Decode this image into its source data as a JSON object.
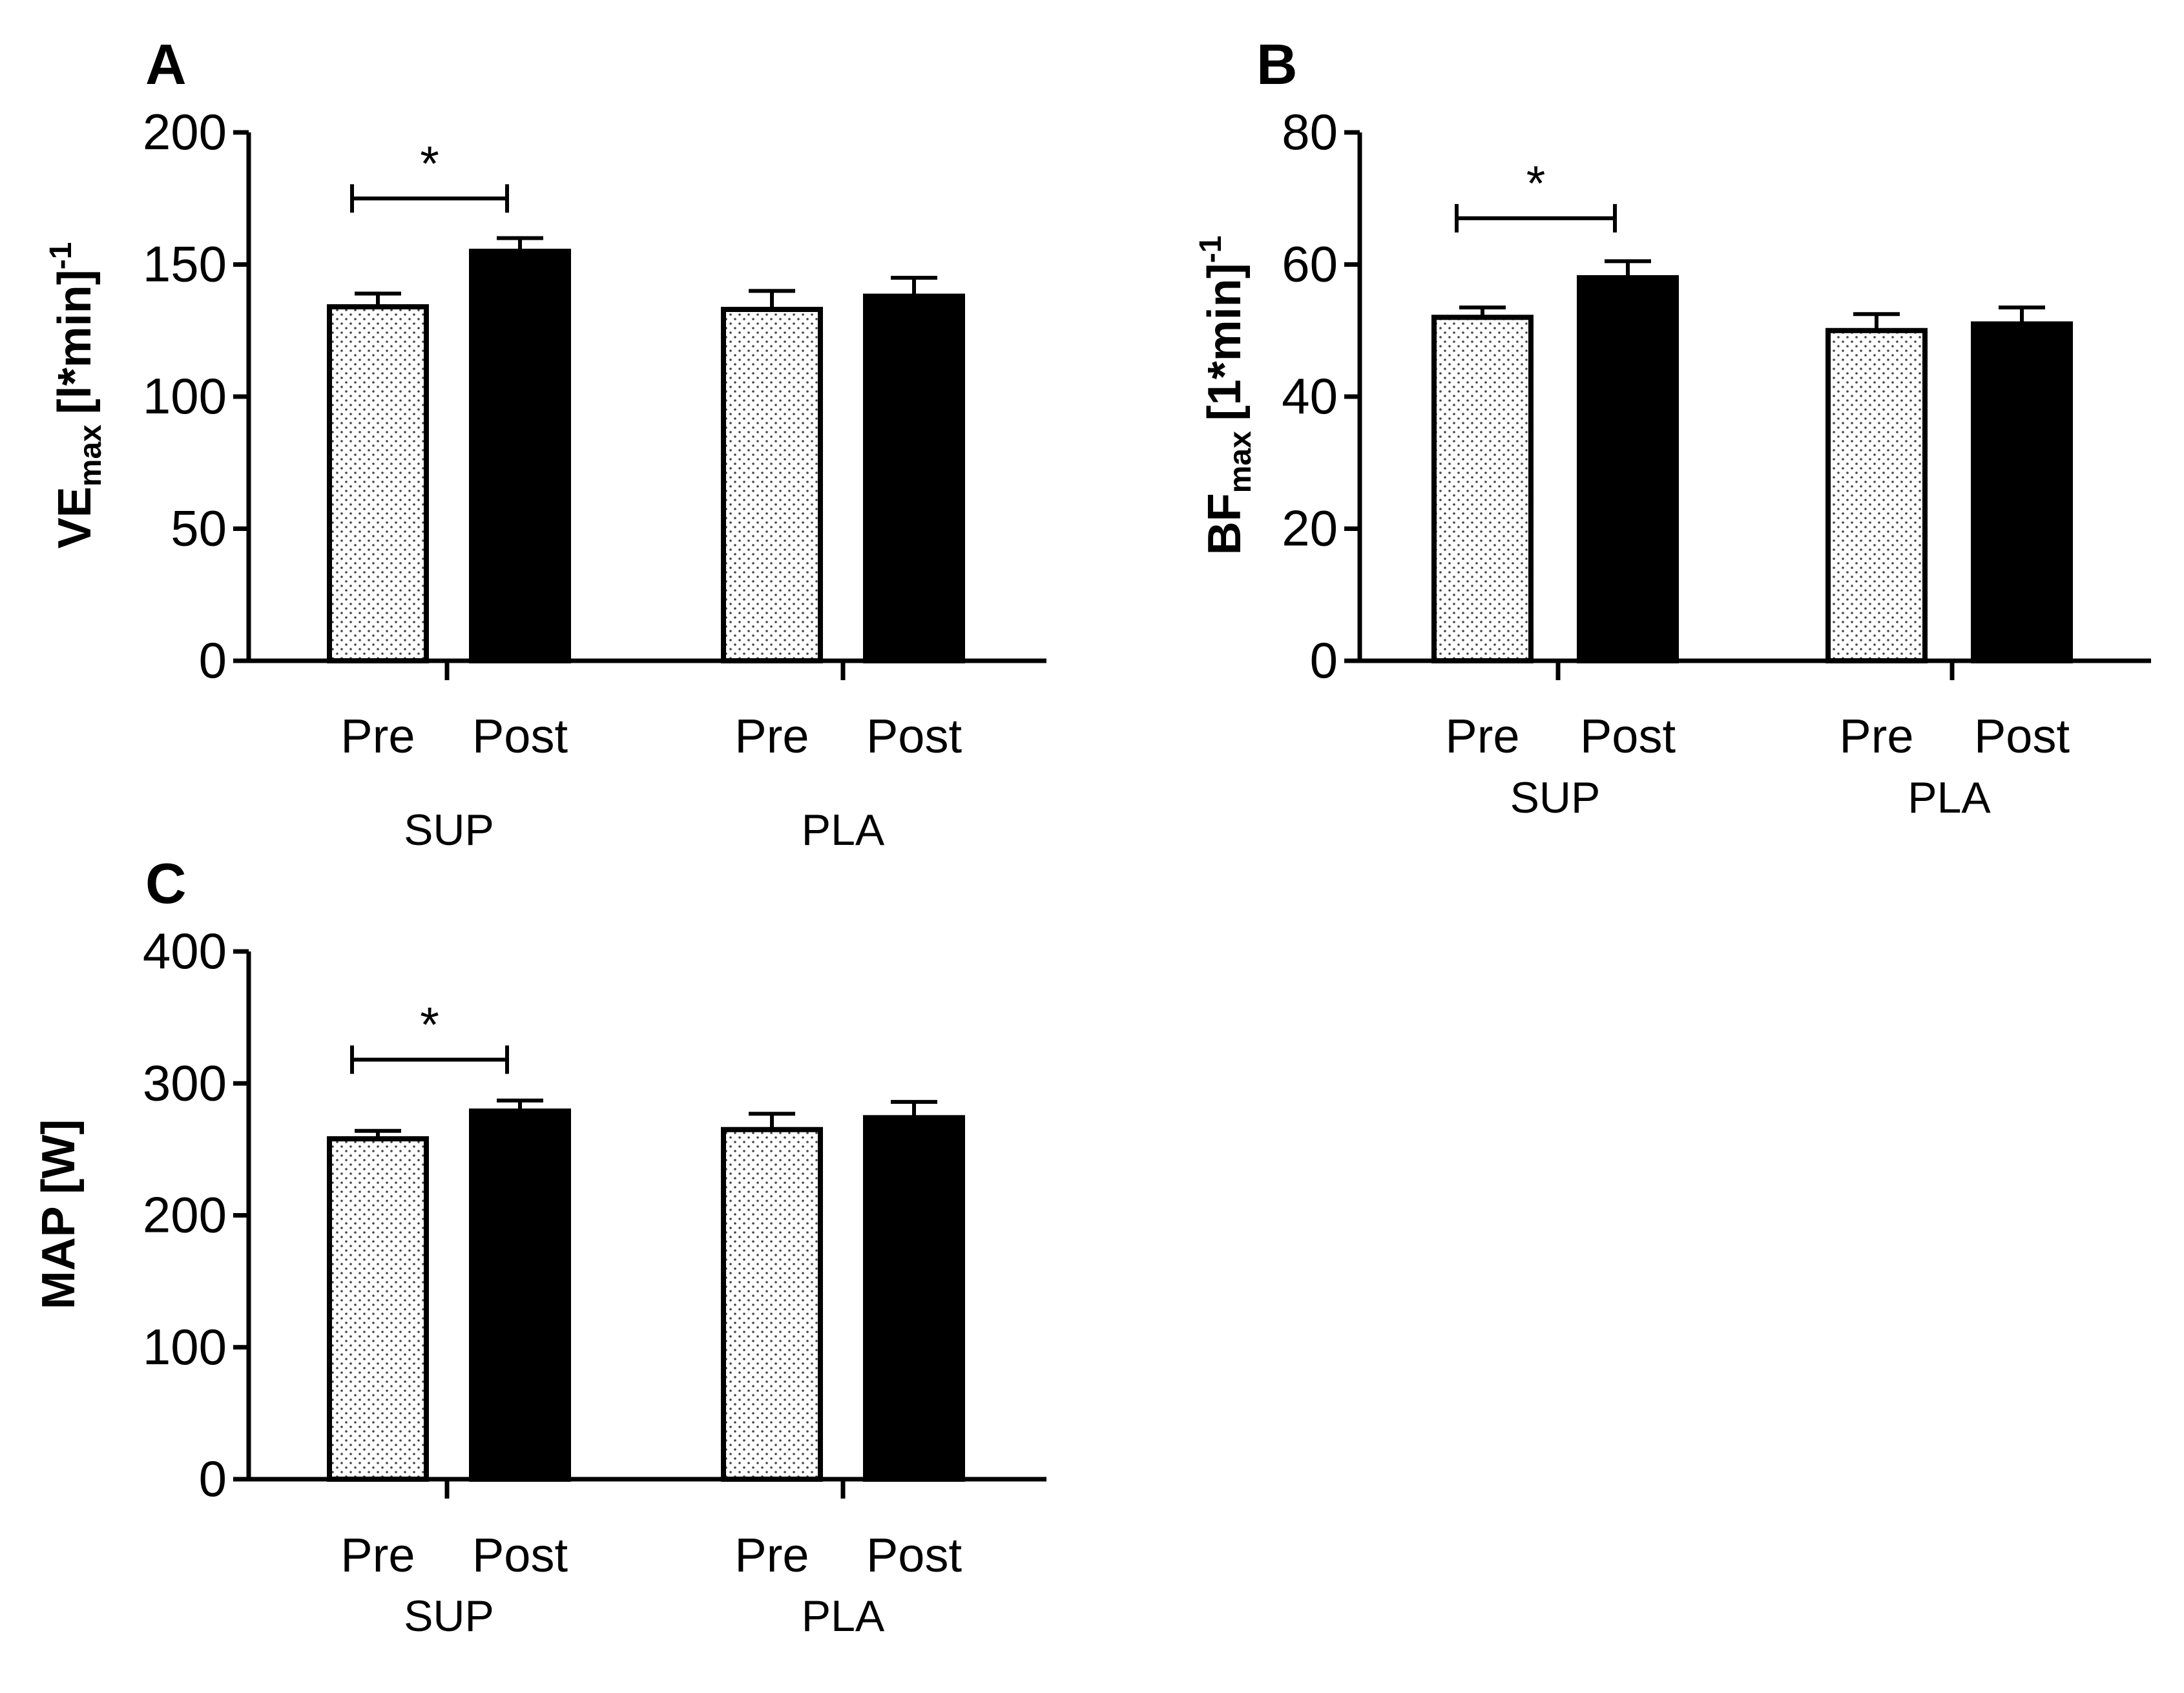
{
  "chart_data": [
    {
      "panel": "A",
      "type": "bar",
      "ylabel": "VE",
      "ylabel_sub": "max",
      "ylabel_unit": "[l*min]",
      "ylabel_sup": "-1",
      "ylim": [
        0,
        200
      ],
      "yticks": [
        "0",
        "50",
        "100",
        "150",
        "200"
      ],
      "categories": [
        "Pre",
        "Post",
        "Pre",
        "Post"
      ],
      "groups": [
        "SUP",
        "PLA"
      ],
      "values": [
        134,
        155,
        133,
        138
      ],
      "errors": [
        5,
        5,
        7,
        7
      ],
      "fills": [
        "dotted",
        "solid",
        "dotted",
        "solid"
      ],
      "significance": {
        "label": "*",
        "bars": [
          0,
          1
        ],
        "level": 175
      }
    },
    {
      "panel": "B",
      "type": "bar",
      "ylabel": "BF",
      "ylabel_sub": "max",
      "ylabel_unit": "[1*min]",
      "ylabel_sup": "-1",
      "ylim": [
        0,
        80
      ],
      "yticks": [
        "0",
        "20",
        "40",
        "60",
        "80"
      ],
      "categories": [
        "Pre",
        "Post",
        "Pre",
        "Post"
      ],
      "groups": [
        "SUP",
        "PLA"
      ],
      "values": [
        52,
        58,
        50,
        51
      ],
      "errors": [
        1.5,
        2.5,
        2.5,
        2.5
      ],
      "fills": [
        "dotted",
        "solid",
        "dotted",
        "solid"
      ],
      "significance": {
        "label": "*",
        "bars": [
          0,
          1
        ],
        "level": 67
      }
    },
    {
      "panel": "C",
      "type": "bar",
      "ylabel": "MAP [W]",
      "ylim": [
        0,
        400
      ],
      "yticks": [
        "0",
        "100",
        "200",
        "300",
        "400"
      ],
      "categories": [
        "Pre",
        "Post",
        "Pre",
        "Post"
      ],
      "groups": [
        "SUP",
        "PLA"
      ],
      "values": [
        258,
        279,
        265,
        274
      ],
      "errors": [
        6,
        8,
        12,
        12
      ],
      "fills": [
        "dotted",
        "solid",
        "dotted",
        "solid"
      ],
      "significance": {
        "label": "*",
        "bars": [
          0,
          1
        ],
        "level": 318
      }
    }
  ]
}
